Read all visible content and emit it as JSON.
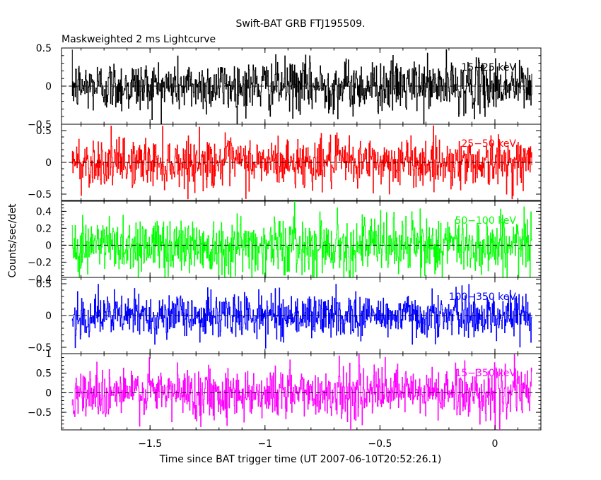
{
  "chart_data": {
    "type": "line",
    "title": "Swift-BAT GRB FTJ195509.",
    "subtitle": "Maskweighted 2 ms Lightcurve",
    "xlabel": "Time since BAT trigger time (UT 2007-06-10T20:52:26.1)",
    "ylabel": "Counts/sec/det",
    "xlim": [
      -1.885,
      0.2
    ],
    "x_ticks": [
      -1.5,
      -1,
      -0.5,
      0
    ],
    "x_tick_labels": [
      "−1.5",
      "−1",
      "−0.5",
      "0"
    ],
    "x_range": [
      -1.84,
      0.16
    ],
    "bin_width": 0.002,
    "grid": false,
    "legend": "band labels at top-right of each panel",
    "panels": [
      {
        "name": "15-25 keV",
        "label": "15−25 keV",
        "color": "#000000",
        "ylim": [
          -0.5,
          0.5
        ],
        "y_ticks": [
          0.5,
          0,
          -0.5
        ],
        "y_tick_labels": [
          "0.5",
          "0",
          "−0.5"
        ],
        "amplitude": 0.45,
        "baseline": 0
      },
      {
        "name": "25-50 keV",
        "label": "25−50 keV",
        "color": "#ff0000",
        "ylim": [
          -0.6,
          0.6
        ],
        "y_ticks": [
          0.5,
          0,
          -0.5
        ],
        "y_tick_labels": [
          "0.5",
          "0",
          "−0.5"
        ],
        "amplitude": 0.5,
        "baseline": 0
      },
      {
        "name": "50-100 keV",
        "label": "50−100 keV",
        "color": "#00ff00",
        "ylim": [
          -0.38,
          0.52
        ],
        "y_ticks": [
          0.4,
          0.2,
          0,
          -0.2,
          -0.4
        ],
        "y_tick_labels": [
          "0.4",
          "0.2",
          "0",
          "−0.2",
          "−0.4"
        ],
        "amplitude": 0.45,
        "baseline": 0
      },
      {
        "name": "100-350 keV",
        "label": "100−350 keV",
        "color": "#0000ff",
        "ylim": [
          -0.6,
          0.6
        ],
        "y_ticks": [
          0.5,
          0,
          -0.5
        ],
        "y_tick_labels": [
          "0.5",
          "0",
          "−0.5"
        ],
        "amplitude": 0.45,
        "baseline": 0
      },
      {
        "name": "15-350 keV",
        "label": "15−350 keV",
        "color": "#ff00ff",
        "ylim": [
          -0.95,
          1.0
        ],
        "y_ticks": [
          1,
          0.5,
          0,
          -0.5
        ],
        "y_tick_labels": [
          "1",
          "0.5",
          "0",
          "−0.5"
        ],
        "amplitude": 0.85,
        "baseline": 0
      }
    ]
  }
}
